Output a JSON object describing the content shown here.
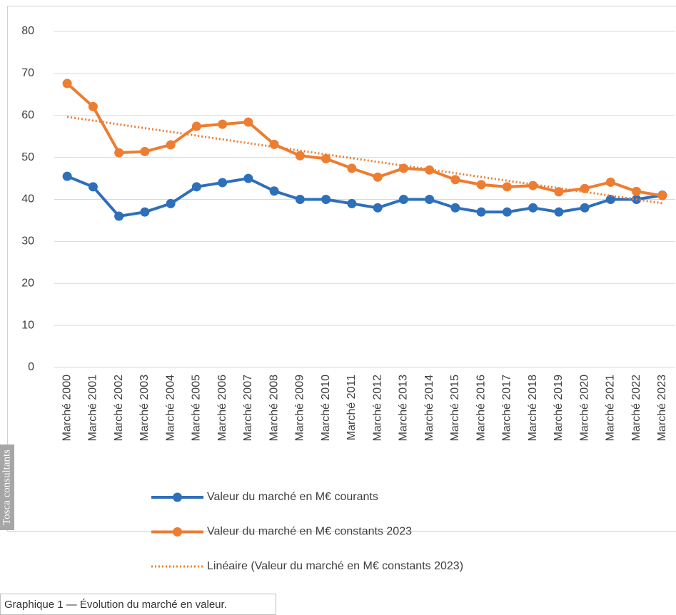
{
  "chart_data": {
    "type": "line",
    "categories": [
      "Marché 2000",
      "Marché 2001",
      "Marché 2002",
      "Marché 2003",
      "Marché 2004",
      "Marché 2005",
      "Marché 2006",
      "Marché 2007",
      "Marché 2008",
      "Marché 2009",
      "Marché 2010",
      "Marché 2011",
      "Marché 2012",
      "Marché 2013",
      "Marché 2014",
      "Marché 2015",
      "Marché 2016",
      "Marché 2017",
      "Marché 2018",
      "Marché 2019",
      "Marché 2020",
      "Marché 2021",
      "Marché 2022",
      "Marché 2023"
    ],
    "series": [
      {
        "name": "Valeur du marché en M€ courants",
        "color": "#2e6fba",
        "values": [
          45.5,
          43,
          36,
          37,
          39,
          43,
          44,
          45,
          42,
          40,
          40,
          39,
          38,
          40,
          40,
          38,
          37,
          37,
          38,
          37,
          38,
          40,
          40,
          41
        ]
      },
      {
        "name": "Valeur du marché en M€ constants 2023",
        "color": "#ed7d31",
        "values": [
          67.6,
          62.1,
          51.1,
          51.4,
          53,
          57.4,
          57.9,
          58.4,
          53.1,
          50.4,
          49.7,
          47.4,
          45.3,
          47.4,
          47,
          44.7,
          43.5,
          43,
          43.3,
          41.8,
          42.6,
          44.1,
          41.9,
          40.9
        ]
      }
    ],
    "trendline": {
      "name": "Linéaire (Valeur du marché en M€ constants 2023)",
      "series": 1,
      "color": "#ed7d31",
      "kind": "linear"
    },
    "ylim": [
      0,
      80
    ],
    "yticks": [
      0,
      10,
      20,
      30,
      40,
      50,
      60,
      70,
      80
    ],
    "grid": true,
    "watermark": "Tosca consultants",
    "caption": "Graphique 1 — Évolution du marché en valeur."
  }
}
